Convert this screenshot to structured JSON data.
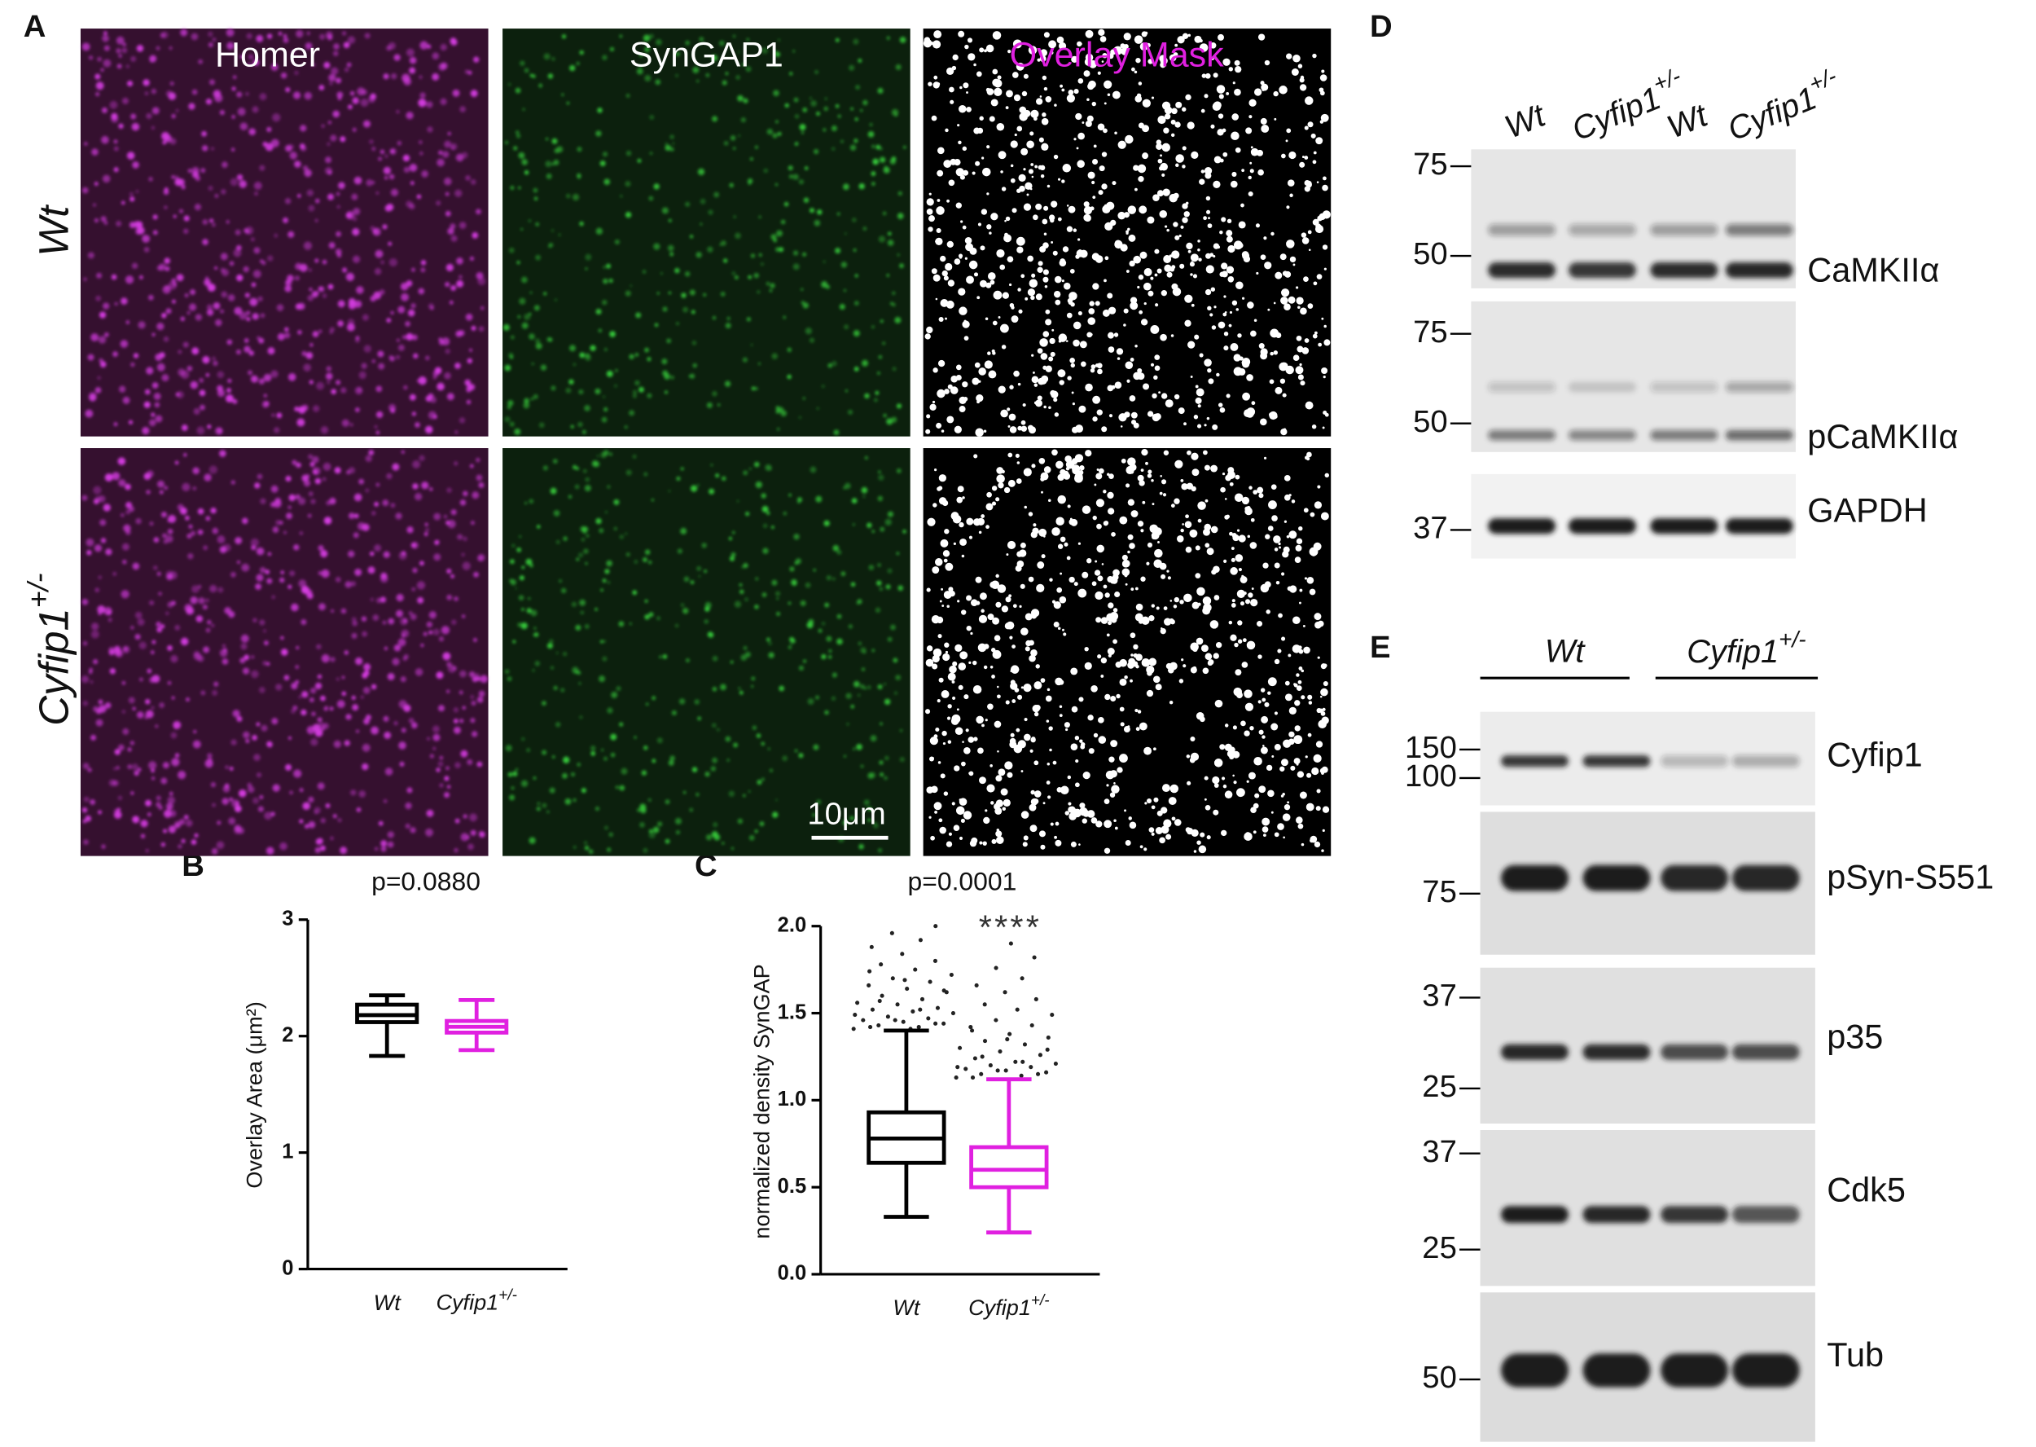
{
  "panel_labels": [
    "A",
    "B",
    "C",
    "D",
    "E"
  ],
  "micrographs": {
    "columns": [
      "Homer",
      "SynGAP1",
      "Overlay Mask"
    ],
    "rows": [
      "Wt",
      "Cyfip1+/-"
    ],
    "scale_bar": "10μm"
  },
  "chart_data": [
    {
      "type": "box",
      "title": "p=0.0880",
      "y_label": "Overlay Area (μm²)",
      "categories": [
        "Wt",
        "Cyfip1+/-"
      ],
      "colors": [
        "#000000",
        "#e020e0"
      ],
      "min": [
        1.83,
        1.88
      ],
      "q1": [
        2.12,
        2.03
      ],
      "median": [
        2.18,
        2.08
      ],
      "q3": [
        2.27,
        2.13
      ],
      "max": [
        2.35,
        2.31
      ],
      "outliers": [
        [],
        []
      ],
      "ylim": [
        0,
        3
      ],
      "yticks": [
        0,
        1,
        2,
        3
      ]
    },
    {
      "type": "box",
      "title": "p=0.0001",
      "annotation": "****",
      "y_label": "normalized density SynGAP",
      "categories": [
        "Wt",
        "Cyfip1+/-"
      ],
      "colors": [
        "#000000",
        "#e020e0"
      ],
      "min": [
        0.33,
        0.24
      ],
      "q1": [
        0.64,
        0.5
      ],
      "median": [
        0.78,
        0.6
      ],
      "q3": [
        0.93,
        0.73
      ],
      "max": [
        1.4,
        1.12
      ],
      "outliers": [
        [
          1.41,
          1.42,
          1.43,
          1.44,
          1.45,
          1.46,
          1.47,
          1.48,
          1.5,
          1.51,
          1.52,
          1.53,
          1.55,
          1.56,
          1.58,
          1.6,
          1.62,
          1.64,
          1.66,
          1.68,
          1.7,
          1.72,
          1.75,
          1.78,
          1.8,
          1.84,
          1.88,
          1.92,
          1.96,
          2.0,
          1.41,
          1.42,
          1.44,
          1.46,
          1.49,
          1.52,
          1.57,
          1.63,
          1.69,
          1.74
        ],
        [
          1.13,
          1.14,
          1.15,
          1.16,
          1.17,
          1.18,
          1.19,
          1.2,
          1.21,
          1.22,
          1.24,
          1.26,
          1.28,
          1.3,
          1.32,
          1.34,
          1.36,
          1.38,
          1.4,
          1.43,
          1.46,
          1.49,
          1.52,
          1.55,
          1.58,
          1.62,
          1.66,
          1.7,
          1.76,
          1.82,
          1.9,
          1.13,
          1.15,
          1.17,
          1.19,
          1.22,
          1.25,
          1.29,
          1.35,
          1.42
        ]
      ],
      "ylim": [
        0,
        2
      ],
      "yticks": [
        {
          "value": 0,
          "label": "0.0"
        },
        0.5,
        {
          "value": 1,
          "label": "1.0"
        },
        1.5,
        {
          "value": 2,
          "label": "2.0"
        }
      ]
    }
  ],
  "blot_d": {
    "lanes": [
      "Wt",
      "Cyfip1+/-",
      "Wt",
      "Cyfip1+/-"
    ],
    "blots": [
      {
        "markers": [
          "75",
          "50"
        ],
        "label": "CaMKIIα"
      },
      {
        "markers": [
          "75",
          "50"
        ],
        "label": "pCaMKIIα"
      },
      {
        "markers": [
          "37"
        ],
        "label": "GAPDH"
      }
    ]
  },
  "blot_e": {
    "groups": [
      "Wt",
      "Cyfip1+/-"
    ],
    "blots": [
      {
        "markers": [
          "150",
          "100"
        ],
        "label": "Cyfip1"
      },
      {
        "markers": [
          "75"
        ],
        "label": "pSyn-S551"
      },
      {
        "markers": [
          "37",
          "25"
        ],
        "label": "p35"
      },
      {
        "markers": [
          "37",
          "25"
        ],
        "label": "Cdk5"
      },
      {
        "markers": [
          "50"
        ],
        "label": "Tub"
      }
    ]
  }
}
